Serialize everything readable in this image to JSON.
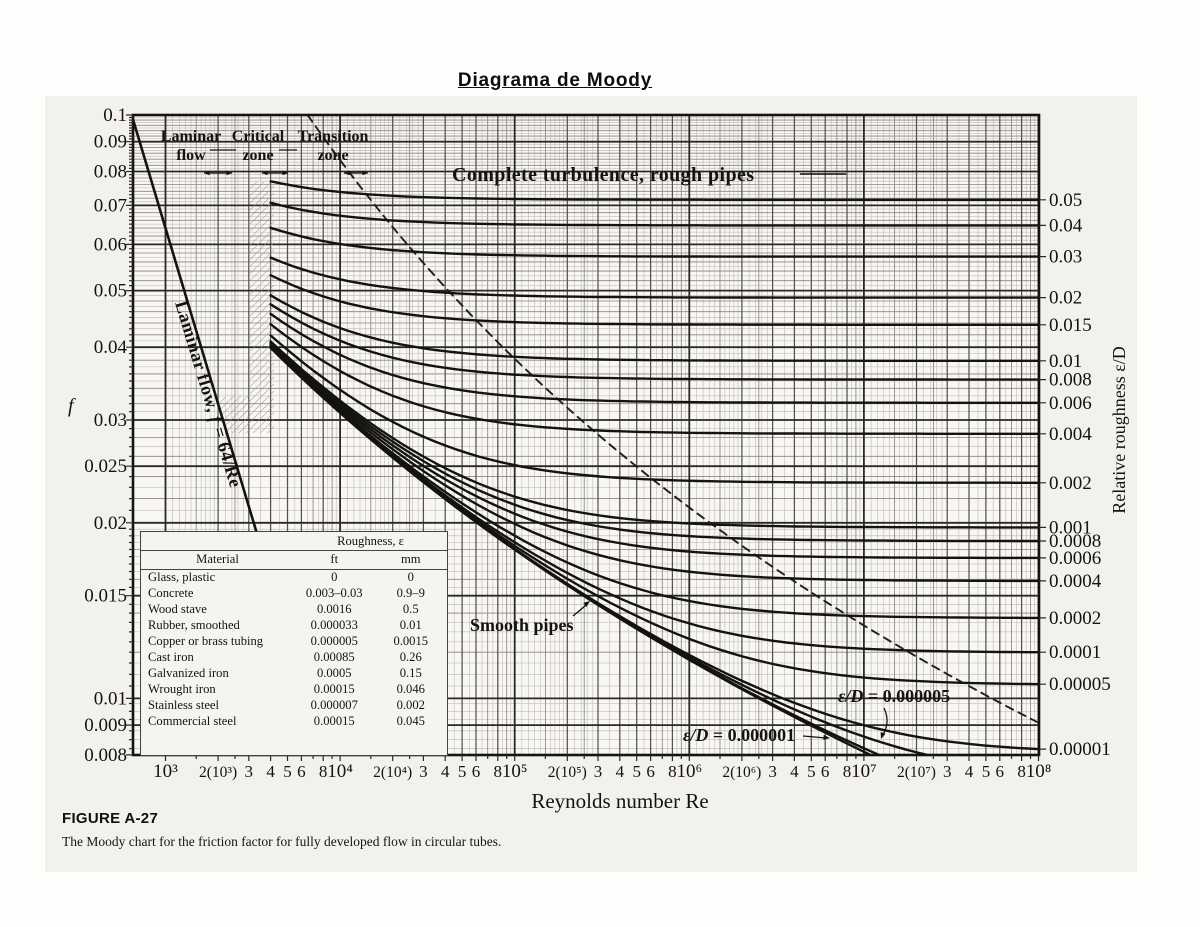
{
  "chart_data": {
    "type": "line",
    "title": "Diagrama de Moody",
    "xlabel": "Reynolds number Re",
    "ylabel_left": "f",
    "ylabel_right": "Relative roughness ε/D",
    "x_scale": "log",
    "y_scale": "log",
    "x_range": [
      650,
      100000000
    ],
    "y_range": [
      0.008,
      0.1
    ],
    "x_ticks": [
      {
        "v": 1000,
        "label": "10³",
        "major": true
      },
      {
        "v": 2000,
        "label": "2(10³)"
      },
      {
        "v": 3000,
        "label": "3"
      },
      {
        "v": 4000,
        "label": "4"
      },
      {
        "v": 5000,
        "label": "5"
      },
      {
        "v": 6000,
        "label": "6"
      },
      {
        "v": 8000,
        "label": "8"
      },
      {
        "v": 10000,
        "label": "10⁴",
        "major": true
      },
      {
        "v": 20000,
        "label": "2(10⁴)"
      },
      {
        "v": 30000,
        "label": "3"
      },
      {
        "v": 40000,
        "label": "4"
      },
      {
        "v": 50000,
        "label": "5"
      },
      {
        "v": 60000,
        "label": "6"
      },
      {
        "v": 80000,
        "label": "8"
      },
      {
        "v": 100000,
        "label": "10⁵",
        "major": true
      },
      {
        "v": 200000,
        "label": "2(10⁵)"
      },
      {
        "v": 300000,
        "label": "3"
      },
      {
        "v": 400000,
        "label": "4"
      },
      {
        "v": 500000,
        "label": "5"
      },
      {
        "v": 600000,
        "label": "6"
      },
      {
        "v": 800000,
        "label": "8"
      },
      {
        "v": 1000000,
        "label": "10⁶",
        "major": true
      },
      {
        "v": 2000000,
        "label": "2(10⁶)"
      },
      {
        "v": 3000000,
        "label": "3"
      },
      {
        "v": 4000000,
        "label": "4"
      },
      {
        "v": 5000000,
        "label": "5"
      },
      {
        "v": 6000000,
        "label": "6"
      },
      {
        "v": 8000000,
        "label": "8"
      },
      {
        "v": 10000000,
        "label": "10⁷",
        "major": true
      },
      {
        "v": 20000000,
        "label": "2(10⁷)"
      },
      {
        "v": 30000000,
        "label": "3"
      },
      {
        "v": 40000000,
        "label": "4"
      },
      {
        "v": 50000000,
        "label": "5"
      },
      {
        "v": 60000000,
        "label": "6"
      },
      {
        "v": 80000000,
        "label": "8"
      },
      {
        "v": 100000000,
        "label": "10⁸",
        "major": true
      }
    ],
    "y_ticks": [
      {
        "v": 0.1,
        "label": "0.1"
      },
      {
        "v": 0.09,
        "label": "0.09"
      },
      {
        "v": 0.08,
        "label": "0.08"
      },
      {
        "v": 0.07,
        "label": "0.07"
      },
      {
        "v": 0.06,
        "label": "0.06"
      },
      {
        "v": 0.05,
        "label": "0.05"
      },
      {
        "v": 0.04,
        "label": "0.04"
      },
      {
        "v": 0.03,
        "label": "0.03"
      },
      {
        "v": 0.025,
        "label": "0.025"
      },
      {
        "v": 0.02,
        "label": "0.02"
      },
      {
        "v": 0.015,
        "label": "0.015"
      },
      {
        "v": 0.01,
        "label": "0.01"
      },
      {
        "v": 0.009,
        "label": "0.009"
      },
      {
        "v": 0.008,
        "label": "0.008"
      }
    ],
    "curves": {
      "model": "Colebrook: 1/√f = −2·log10( (ε/D)/3.7 + 2.51/(Re·√f) ), turbulent region Re ≥ 4000",
      "turbulent_start_re": 4000,
      "relative_roughness": [
        {
          "rr": 0.05,
          "label": "0.05"
        },
        {
          "rr": 0.04,
          "label": "0.04"
        },
        {
          "rr": 0.03,
          "label": "0.03"
        },
        {
          "rr": 0.02,
          "label": "0.02"
        },
        {
          "rr": 0.015,
          "label": "0.015"
        },
        {
          "rr": 0.01,
          "label": "0.01"
        },
        {
          "rr": 0.008,
          "label": "0.008"
        },
        {
          "rr": 0.006,
          "label": "0.006"
        },
        {
          "rr": 0.004,
          "label": "0.004"
        },
        {
          "rr": 0.002,
          "label": "0.002"
        },
        {
          "rr": 0.001,
          "label": "0.001"
        },
        {
          "rr": 0.0008,
          "label": "0.0008"
        },
        {
          "rr": 0.0006,
          "label": "0.0006"
        },
        {
          "rr": 0.0004,
          "label": "0.0004"
        },
        {
          "rr": 0.0002,
          "label": "0.0002"
        },
        {
          "rr": 0.0001,
          "label": "0.0001"
        },
        {
          "rr": 5e-05,
          "label": "0.00005"
        },
        {
          "rr": 1e-05,
          "label": "0.00001"
        }
      ],
      "inline_labeled": [
        {
          "rr": 5e-06,
          "label": "ε/D = 0.000005"
        },
        {
          "rr": 1e-06,
          "label": "ε/D = 0.000001"
        },
        {
          "rr": 0,
          "label": "Smooth pipes"
        }
      ],
      "laminar": {
        "label": "Laminar flow, f = 64/Re",
        "re_start": 640,
        "re_end": 3306
      },
      "transition_boundary": "dashed line marking onset of complete turbulence"
    },
    "annotations": {
      "zones": [
        {
          "line1": "Laminar",
          "line2": "flow"
        },
        {
          "line1": "Critical",
          "line2": "zone"
        },
        {
          "line1": "Transition",
          "line2": "zone"
        }
      ],
      "complete_turbulence": "Complete turbulence, rough pipes"
    }
  },
  "table": {
    "roughness_header": "Roughness, ε",
    "columns": [
      "Material",
      "ft",
      "mm"
    ],
    "rows": [
      {
        "material": "Glass, plastic",
        "ft": "0",
        "mm": "0"
      },
      {
        "material": "Concrete",
        "ft": "0.003–0.03",
        "mm": "0.9–9"
      },
      {
        "material": "Wood stave",
        "ft": "0.0016",
        "mm": "0.5"
      },
      {
        "material": "Rubber, smoothed",
        "ft": "0.000033",
        "mm": "0.01"
      },
      {
        "material": "Copper or brass tubing",
        "ft": "0.000005",
        "mm": "0.0015"
      },
      {
        "material": "Cast iron",
        "ft": "0.00085",
        "mm": "0.26"
      },
      {
        "material": "Galvanized iron",
        "ft": "0.0005",
        "mm": "0.15"
      },
      {
        "material": "Wrought iron",
        "ft": "0.00015",
        "mm": "0.046"
      },
      {
        "material": "Stainless steel",
        "ft": "0.000007",
        "mm": "0.002"
      },
      {
        "material": "Commercial steel",
        "ft": "0.00015",
        "mm": "0.045"
      }
    ]
  },
  "caption": {
    "label": "FIGURE A-27",
    "text": "The Moody chart for the friction factor for fully developed flow in circular tubes."
  }
}
